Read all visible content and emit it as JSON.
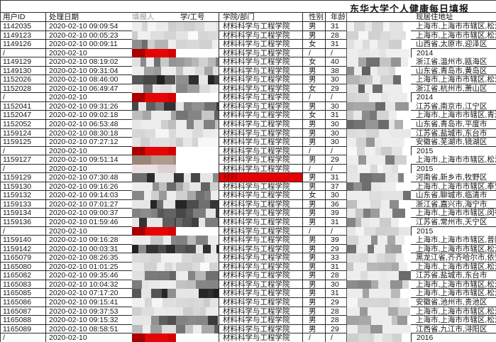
{
  "title": "东华大学个人健康每日填报",
  "columns": {
    "user_id": "用户ID",
    "date": "处理日期",
    "reporter": "填报人",
    "staff_no": "学/工号",
    "college": "学院/部门",
    "gender": "性别",
    "age": "年龄",
    "contact": "",
    "address": "现居住地址"
  },
  "college_default": "材料科学与工程学院",
  "colors": {
    "redaction_red": "#e60505",
    "redaction_dark_red": "#a80000",
    "redaction_brown": "#a38f85",
    "college_highlight_bg": "#e80000",
    "college_highlight_text": "#7e0000"
  },
  "rows": [
    {
      "id": "1142035",
      "date": "2020-02-10 09:09:54",
      "gender": "男",
      "age": "31",
      "address": "上海市,上海市市辖区,松江",
      "rep": "light",
      "ph": "light"
    },
    {
      "id": "1149123",
      "date": "2020-02-10 00:05:23",
      "gender": "男",
      "age": "28",
      "address": "上海市,上海市市辖区,松江",
      "rep": "light",
      "ph": "light"
    },
    {
      "id": "1149126",
      "date": "2020-02-10 00:09:11",
      "gender": "女",
      "age": "31",
      "address": "山西省,太原市,迎泽区",
      "rep": "mosaic",
      "ph": "light"
    },
    {
      "id": "/",
      "date": "2020-02-10",
      "gender": "/",
      "age": "/",
      "address": "2014",
      "sep": true,
      "rep": "red",
      "ph": "light"
    },
    {
      "id": "1149129",
      "date": "2020-02-10 08:19:02",
      "gender": "女",
      "age": "40",
      "address": "浙江省,温州市,瓯海区",
      "rep": "mosaic",
      "ph": "mosaic"
    },
    {
      "id": "1149130",
      "date": "2020-02-10 09:31:04",
      "gender": "男",
      "age": "38",
      "address": "山东省,青岛市,黄岛区",
      "rep": "mosaic",
      "ph": "mosaic"
    },
    {
      "id": "1152026",
      "date": "2020-02-10 08:46:00",
      "gender": "男",
      "age": "30",
      "address": "上海市,上海市市辖区,松江",
      "rep": "dark",
      "ph": "mosaic"
    },
    {
      "id": "1152028",
      "date": "2020-02-10 06:49:47",
      "gender": "女",
      "age": "29",
      "address": "浙江省,杭州市,萧山区",
      "rep": "mosaic",
      "ph": "mosaic"
    },
    {
      "id": "/",
      "date": "2020-02-10",
      "gender": "/",
      "age": "/",
      "address": "2014",
      "sep": true,
      "rep": "red",
      "ph": "light"
    },
    {
      "id": "1152041",
      "date": "2020-02-10 09:31:26",
      "gender": "男",
      "age": "30",
      "address": "江苏省,南京市,江宁区",
      "rep": "dark",
      "ph": "mosaic"
    },
    {
      "id": "1152047",
      "date": "2020-02-10 09:02:18",
      "gender": "女",
      "age": "31",
      "address": "上海市,上海市市辖区,青浦",
      "rep": "mosaic",
      "ph": "mosaic"
    },
    {
      "id": "1152052",
      "date": "2020-02-10 06:53:48",
      "gender": "男",
      "age": "30",
      "address": "山东省,青岛市,平度市",
      "rep": "mosaic",
      "ph": "mosaic"
    },
    {
      "id": "1159124",
      "date": "2020-02-10 08:30:18",
      "gender": "男",
      "age": "30",
      "address": "江苏省,盐城市,东台市",
      "rep": "light",
      "ph": "light"
    },
    {
      "id": "1159125",
      "date": "2020-02-10 07:27:12",
      "gender": "男",
      "age": "30",
      "address": "安徽省,芜湖市,镜湖区",
      "rep": "light",
      "ph": "mosaic"
    },
    {
      "id": "/",
      "date": "2020-02-10",
      "gender": "/",
      "age": "/",
      "address": "2015",
      "sep": true,
      "rep": "red",
      "ph": "light"
    },
    {
      "id": "1159127",
      "date": "2020-02-10 09:51:14",
      "gender": "男",
      "age": "29",
      "address": "上海市,上海市市辖区,松江",
      "rep": "brown",
      "ph": "mosaic"
    },
    {
      "id": "/",
      "date": "2020-02-10",
      "gender": "/",
      "age": "/",
      "address": "2015",
      "sep": true,
      "rep": "pink",
      "ph": "light"
    },
    {
      "id": "1159129",
      "date": "2020-02-10 07:30:48",
      "gender": "男",
      "age": "31",
      "address": "河南省,新乡市,牧野区",
      "rep": "dark",
      "ph": "dark",
      "college": "材料",
      "college_red": true
    },
    {
      "id": "1159130",
      "date": "2020-02-10 09:16:26",
      "gender": "男",
      "age": "37",
      "address": "上海市,上海市市辖区,奉贤",
      "rep": "mosaic",
      "ph": "mosaic"
    },
    {
      "id": "1159132",
      "date": "2020-02-10 09:14:03",
      "gender": "女",
      "age": "30",
      "address": "山东省,聊城市,临清市",
      "rep": "mosaic",
      "ph": "mosaic"
    },
    {
      "id": "1159133",
      "date": "2020-02-10 07:01:27",
      "gender": "男",
      "age": "36",
      "address": "浙江省,嘉兴市,海宁市",
      "rep": "dark",
      "ph": "mosaic"
    },
    {
      "id": "1159134",
      "date": "2020-02-10 09:00:37",
      "gender": "男",
      "age": "39",
      "address": "上海市,上海市市辖区,闵行",
      "rep": "dark",
      "ph": "mosaic"
    },
    {
      "id": "1159136",
      "date": "2020-02-10 01:59:46",
      "gender": "男",
      "age": "31",
      "address": "江苏省,常州市,天宁区",
      "rep": "dark",
      "ph": "mosaic"
    },
    {
      "id": "/",
      "date": "2020-02-10",
      "gender": "/",
      "age": "/",
      "address": "2015",
      "sep": true,
      "rep": "red",
      "ph": "light"
    },
    {
      "id": "1159140",
      "date": "2020-02-10 09:16:28",
      "gender": "男",
      "age": "39",
      "address": "上海市,上海市市辖区,普陀",
      "rep": "mosaic",
      "ph": "mosaic"
    },
    {
      "id": "1159142",
      "date": "2020-02-10 00:03:31",
      "gender": "男",
      "age": "29",
      "address": "上海市,上海市市辖区,松江",
      "rep": "dark",
      "ph": "mosaic"
    },
    {
      "id": "1165079",
      "date": "2020-02-10 08:26:35",
      "gender": "男",
      "age": "33",
      "address": "黑龙江省,齐齐哈尔市,依安",
      "rep": "light",
      "ph": "light"
    },
    {
      "id": "1165080",
      "date": "2020-02-10 01:01:25",
      "gender": "男",
      "age": "31",
      "address": "上海市,上海市市辖区,松江",
      "rep": "light",
      "ph": "mosaic"
    },
    {
      "id": "1165082",
      "date": "2020-02-10 09:35:46",
      "gender": "男",
      "age": "28",
      "address": "江苏省,盐城市,东台市",
      "rep": "mosaic",
      "ph": "mosaic"
    },
    {
      "id": "1165083",
      "date": "2020-02-10 10:04:32",
      "gender": "男",
      "age": "30",
      "address": "上海市,上海市市辖区,松江",
      "rep": "mosaic",
      "ph": "mosaic"
    },
    {
      "id": "1165085",
      "date": "2020-02-10 07:17:20",
      "gender": "男",
      "age": "31",
      "address": "上海市,上海市市辖区,松江",
      "rep": "dark",
      "ph": "mosaic"
    },
    {
      "id": "1165086",
      "date": "2020-02-10 09:15:41",
      "gender": "男",
      "age": "29",
      "address": "安徽省,池州市,贵池区",
      "rep": "light",
      "ph": "light"
    },
    {
      "id": "1165087",
      "date": "2020-02-10 09:37:53",
      "gender": "男",
      "age": "28",
      "address": "上海市,上海市市辖区,松江",
      "rep": "light",
      "ph": "mosaic"
    },
    {
      "id": "1165088",
      "date": "2020-02-10 09:15:32",
      "gender": "男",
      "age": "28",
      "address": "上海市,上海市市辖区,松江",
      "rep": "dark",
      "ph": "mosaic"
    },
    {
      "id": "1165089",
      "date": "2020-02-10 08:58:51",
      "gender": "男",
      "age": "29",
      "address": "江西省,九江市,浔阳区",
      "rep": "mosaic",
      "ph": "mosaic"
    },
    {
      "id": "/",
      "date": "2020-02-10",
      "gender": "/",
      "age": "/",
      "address": "2016",
      "sep": true,
      "rep": "red",
      "ph": "light"
    }
  ]
}
